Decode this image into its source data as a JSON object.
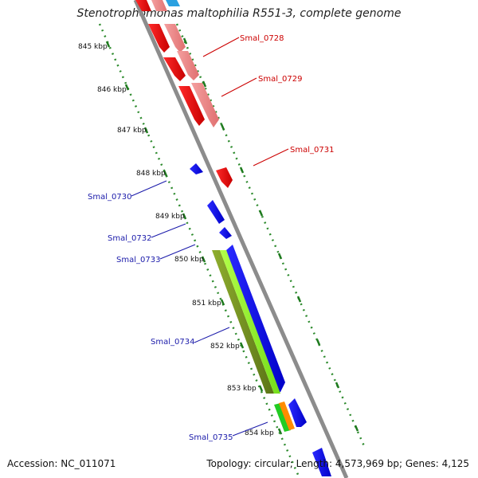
{
  "title": "Stenotrophomonas maltophilia R551-3, complete genome",
  "footer": {
    "accession": "Accession: NC_011071",
    "topology": "Topology: circular; Length: 4,573,969 bp; Genes: 4,125"
  },
  "kbp_labels": [
    "845 kbp",
    "846 kbp",
    "847 kbp",
    "848 kbp",
    "849 kbp",
    "850 kbp",
    "851 kbp",
    "852 kbp",
    "853 kbp",
    "854 kbp"
  ],
  "genes": [
    {
      "name": "Smal_0728",
      "color": "#cc0000"
    },
    {
      "name": "Smal_0729",
      "color": "#cc0000"
    },
    {
      "name": "Smal_0731",
      "color": "#cc0000"
    },
    {
      "name": "Smal_0730",
      "color": "#1a1aaa"
    },
    {
      "name": "Smal_0732",
      "color": "#1a1aaa"
    },
    {
      "name": "Smal_0733",
      "color": "#1a1aaa"
    },
    {
      "name": "Smal_0734",
      "color": "#1a1aaa"
    },
    {
      "name": "Smal_0735",
      "color": "#1a1aaa"
    }
  ],
  "colors": {
    "backbone": "#8c8c8c",
    "forward_strong": "#e8000d",
    "forward_light": "#ef8a8a",
    "reverse_cds": "#0000ee",
    "olive_feature": "#6e8b22",
    "lime_feature": "#88ee22",
    "orange_feature": "#ff8c00",
    "green_feature": "#22cc22",
    "tick_green": "#2e8b2e"
  }
}
